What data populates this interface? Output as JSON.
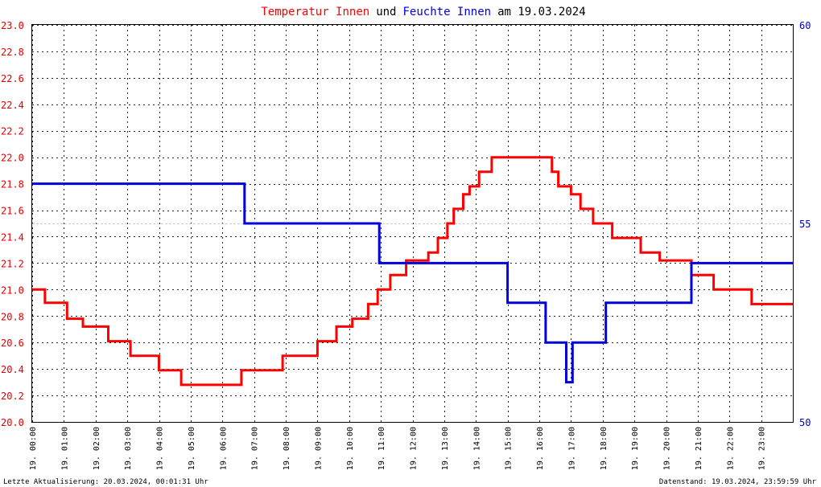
{
  "chart_data": {
    "type": "line",
    "title": {
      "part1": "Temperatur Innen",
      "part2": "und",
      "part3": "Feuchte Innen",
      "part4": "am 19.03.2024"
    },
    "x_ticks": [
      "19. 00:00",
      "19. 01:00",
      "19. 02:00",
      "19. 03:00",
      "19. 04:00",
      "19. 05:00",
      "19. 06:00",
      "19. 07:00",
      "19. 08:00",
      "19. 09:00",
      "19. 10:00",
      "19. 11:00",
      "19. 12:00",
      "19. 13:00",
      "19. 14:00",
      "19. 15:00",
      "19. 16:00",
      "19. 17:00",
      "19. 18:00",
      "19. 19:00",
      "19. 20:00",
      "19. 21:00",
      "19. 22:00",
      "19. 23:00"
    ],
    "x_range_hours": [
      0,
      24
    ],
    "y_left": {
      "ticks": [
        "20.0",
        "20.2",
        "20.4",
        "20.6",
        "20.8",
        "21.0",
        "21.2",
        "21.4",
        "21.6",
        "21.8",
        "22.0",
        "22.2",
        "22.4",
        "22.6",
        "22.8",
        "23.0"
      ],
      "range": [
        20.0,
        23.0
      ],
      "color": "#e00000"
    },
    "y_right": {
      "ticks": [
        "50",
        "55",
        "60"
      ],
      "range": [
        50,
        60
      ],
      "color": "#0000c0"
    },
    "grid": true,
    "series": [
      {
        "name": "Temperatur Innen",
        "axis": "left",
        "color": "#ff0000",
        "points": [
          [
            0.0,
            21.0
          ],
          [
            0.4,
            21.0
          ],
          [
            0.4,
            20.9
          ],
          [
            1.1,
            20.9
          ],
          [
            1.1,
            20.78
          ],
          [
            1.6,
            20.78
          ],
          [
            1.6,
            20.72
          ],
          [
            2.4,
            20.72
          ],
          [
            2.4,
            20.61
          ],
          [
            3.1,
            20.61
          ],
          [
            3.1,
            20.5
          ],
          [
            4.0,
            20.5
          ],
          [
            4.0,
            20.39
          ],
          [
            4.7,
            20.39
          ],
          [
            4.7,
            20.28
          ],
          [
            6.6,
            20.28
          ],
          [
            6.6,
            20.39
          ],
          [
            7.9,
            20.39
          ],
          [
            7.9,
            20.5
          ],
          [
            9.0,
            20.5
          ],
          [
            9.0,
            20.61
          ],
          [
            9.6,
            20.61
          ],
          [
            9.6,
            20.72
          ],
          [
            10.1,
            20.72
          ],
          [
            10.1,
            20.78
          ],
          [
            10.6,
            20.78
          ],
          [
            10.6,
            20.89
          ],
          [
            10.9,
            20.89
          ],
          [
            10.9,
            21.0
          ],
          [
            11.3,
            21.0
          ],
          [
            11.3,
            21.11
          ],
          [
            11.8,
            21.11
          ],
          [
            11.8,
            21.22
          ],
          [
            12.5,
            21.22
          ],
          [
            12.5,
            21.28
          ],
          [
            12.8,
            21.28
          ],
          [
            12.8,
            21.39
          ],
          [
            13.1,
            21.39
          ],
          [
            13.1,
            21.5
          ],
          [
            13.3,
            21.5
          ],
          [
            13.3,
            21.61
          ],
          [
            13.6,
            21.61
          ],
          [
            13.6,
            21.72
          ],
          [
            13.8,
            21.72
          ],
          [
            13.8,
            21.78
          ],
          [
            14.1,
            21.78
          ],
          [
            14.1,
            21.89
          ],
          [
            14.5,
            21.89
          ],
          [
            14.5,
            22.0
          ],
          [
            16.4,
            22.0
          ],
          [
            16.4,
            21.89
          ],
          [
            16.6,
            21.89
          ],
          [
            16.6,
            21.78
          ],
          [
            17.0,
            21.78
          ],
          [
            17.0,
            21.72
          ],
          [
            17.3,
            21.72
          ],
          [
            17.3,
            21.61
          ],
          [
            17.7,
            21.61
          ],
          [
            17.7,
            21.5
          ],
          [
            18.3,
            21.5
          ],
          [
            18.3,
            21.39
          ],
          [
            19.2,
            21.39
          ],
          [
            19.2,
            21.28
          ],
          [
            19.8,
            21.28
          ],
          [
            19.8,
            21.22
          ],
          [
            20.8,
            21.22
          ],
          [
            20.8,
            21.11
          ],
          [
            21.5,
            21.11
          ],
          [
            21.5,
            21.0
          ],
          [
            22.7,
            21.0
          ],
          [
            22.7,
            20.89
          ],
          [
            24.0,
            20.89
          ]
        ]
      },
      {
        "name": "Feuchte Innen",
        "axis": "right",
        "color": "#0000dd",
        "points": [
          [
            0.0,
            56.0
          ],
          [
            6.7,
            56.0
          ],
          [
            6.7,
            55.0
          ],
          [
            10.95,
            55.0
          ],
          [
            10.95,
            54.0
          ],
          [
            15.0,
            54.0
          ],
          [
            15.0,
            53.0
          ],
          [
            16.2,
            53.0
          ],
          [
            16.2,
            52.0
          ],
          [
            16.85,
            52.0
          ],
          [
            16.85,
            51.0
          ],
          [
            17.05,
            51.0
          ],
          [
            17.05,
            52.0
          ],
          [
            18.1,
            52.0
          ],
          [
            18.1,
            53.0
          ],
          [
            20.8,
            53.0
          ],
          [
            20.8,
            54.0
          ],
          [
            24.0,
            54.0
          ]
        ]
      }
    ],
    "footer": {
      "left": "Letzte Aktualisierung: 20.03.2024, 00:01:31 Uhr",
      "right": "Datenstand: 19.03.2024, 23:59:59 Uhr"
    }
  }
}
